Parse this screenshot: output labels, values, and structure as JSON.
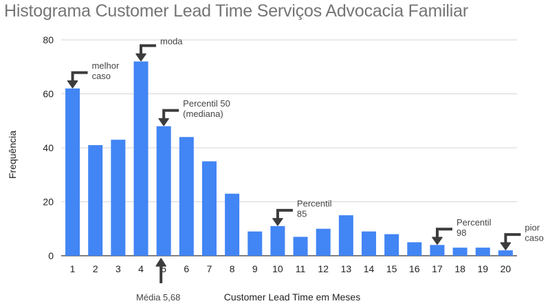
{
  "chart_data": {
    "type": "bar",
    "title": "Histograma Customer Lead Time Serviços Advocacia Familiar",
    "xlabel": "Customer Lead Time em Meses",
    "ylabel": "Frequência",
    "categories": [
      "1",
      "2",
      "3",
      "4",
      "5",
      "6",
      "7",
      "8",
      "9",
      "10",
      "11",
      "12",
      "13",
      "14",
      "15",
      "16",
      "17",
      "18",
      "19",
      "20"
    ],
    "values": [
      62,
      41,
      43,
      72,
      48,
      44,
      35,
      23,
      9,
      11,
      7,
      10,
      15,
      9,
      8,
      5,
      4,
      3,
      3,
      2
    ],
    "ylim": [
      0,
      80
    ],
    "yticks": [
      "0",
      "20",
      "40",
      "60",
      "80"
    ],
    "grid": true,
    "legend": "none",
    "bar_color": "#4285f4",
    "annotations": [
      {
        "lines": [
          "melhor",
          "caso"
        ],
        "category": "1",
        "value": 62
      },
      {
        "lines": [
          "moda"
        ],
        "category": "4",
        "value": 72
      },
      {
        "lines": [
          "Percentil 50",
          "(mediana)"
        ],
        "category": "5",
        "value": 48
      },
      {
        "lines": [
          "Percentil",
          "85"
        ],
        "category": "10",
        "value": 11
      },
      {
        "lines": [
          "Percentil",
          "98"
        ],
        "category": "17",
        "value": 4
      },
      {
        "lines": [
          "pior",
          "caso"
        ],
        "category": "20",
        "value": 2
      }
    ],
    "mean_marker": {
      "label": "Média 5,68",
      "value": 5.68
    }
  }
}
